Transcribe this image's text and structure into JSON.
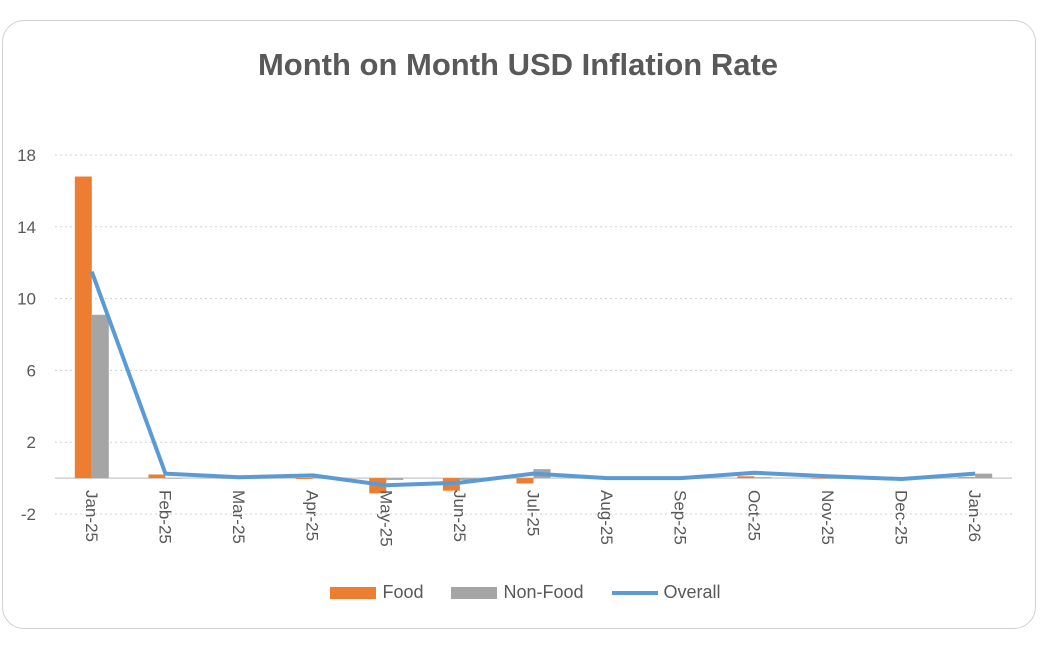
{
  "chart_data": {
    "type": "bar+line",
    "title": "Month on Month USD Inflation Rate",
    "categories": [
      "Jan-25",
      "Feb-25",
      "Mar-25",
      "Apr-25",
      "May-25",
      "Jun-25",
      "Jul-25",
      "Aug-25",
      "Sep-25",
      "Oct-25",
      "Nov-25",
      "Dec-25",
      "Jan-26"
    ],
    "series": [
      {
        "name": "Food",
        "type": "bar",
        "color": "#ed7d31",
        "values": [
          16.8,
          0.2,
          0.0,
          -0.05,
          -0.85,
          -0.7,
          -0.3,
          0.0,
          0.0,
          0.1,
          0.0,
          0.0,
          0.05
        ]
      },
      {
        "name": "Non-Food",
        "type": "bar",
        "color": "#a5a5a5",
        "values": [
          9.1,
          0.0,
          0.0,
          0.1,
          -0.1,
          -0.1,
          0.5,
          0.0,
          0.0,
          0.05,
          0.0,
          0.0,
          0.25
        ]
      },
      {
        "name": "Overall",
        "type": "line",
        "color": "#5b9bd5",
        "values": [
          11.5,
          0.25,
          0.05,
          0.15,
          -0.4,
          -0.25,
          0.25,
          0.0,
          0.0,
          0.3,
          0.1,
          -0.05,
          0.25
        ]
      }
    ],
    "yticks": [
      18,
      14,
      10,
      6,
      2,
      -2
    ],
    "ylim": [
      -2,
      18
    ],
    "grid": true,
    "legend": "bottom"
  }
}
